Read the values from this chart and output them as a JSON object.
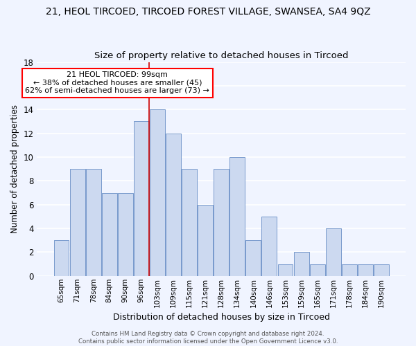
{
  "title": "21, HEOL TIRCOED, TIRCOED FOREST VILLAGE, SWANSEA, SA4 9QZ",
  "subtitle": "Size of property relative to detached houses in Tircoed",
  "xlabel": "Distribution of detached houses by size in Tircoed",
  "ylabel": "Number of detached properties",
  "categories": [
    "65sqm",
    "71sqm",
    "78sqm",
    "84sqm",
    "90sqm",
    "96sqm",
    "103sqm",
    "109sqm",
    "115sqm",
    "121sqm",
    "128sqm",
    "134sqm",
    "140sqm",
    "146sqm",
    "153sqm",
    "159sqm",
    "165sqm",
    "171sqm",
    "178sqm",
    "184sqm",
    "190sqm"
  ],
  "values": [
    3,
    9,
    9,
    7,
    7,
    13,
    14,
    12,
    9,
    6,
    9,
    10,
    3,
    5,
    1,
    2,
    1,
    4,
    1,
    1,
    1
  ],
  "bar_color": "#ccd9f0",
  "bar_edge_color": "#7799cc",
  "vline_index": 6,
  "vline_color": "#cc0000",
  "annotation_text": "21 HEOL TIRCOED: 99sqm\n← 38% of detached houses are smaller (45)\n62% of semi-detached houses are larger (73) →",
  "annotation_box_color": "white",
  "annotation_box_edge_color": "red",
  "ylim": [
    0,
    18
  ],
  "yticks": [
    0,
    2,
    4,
    6,
    8,
    10,
    12,
    14,
    16,
    18
  ],
  "footer": "Contains HM Land Registry data © Crown copyright and database right 2024.\nContains public sector information licensed under the Open Government Licence v3.0.",
  "bg_color": "#f0f4ff",
  "grid_color": "white",
  "title_fontsize": 10,
  "subtitle_fontsize": 9.5,
  "xlabel_fontsize": 9,
  "ylabel_fontsize": 8.5
}
